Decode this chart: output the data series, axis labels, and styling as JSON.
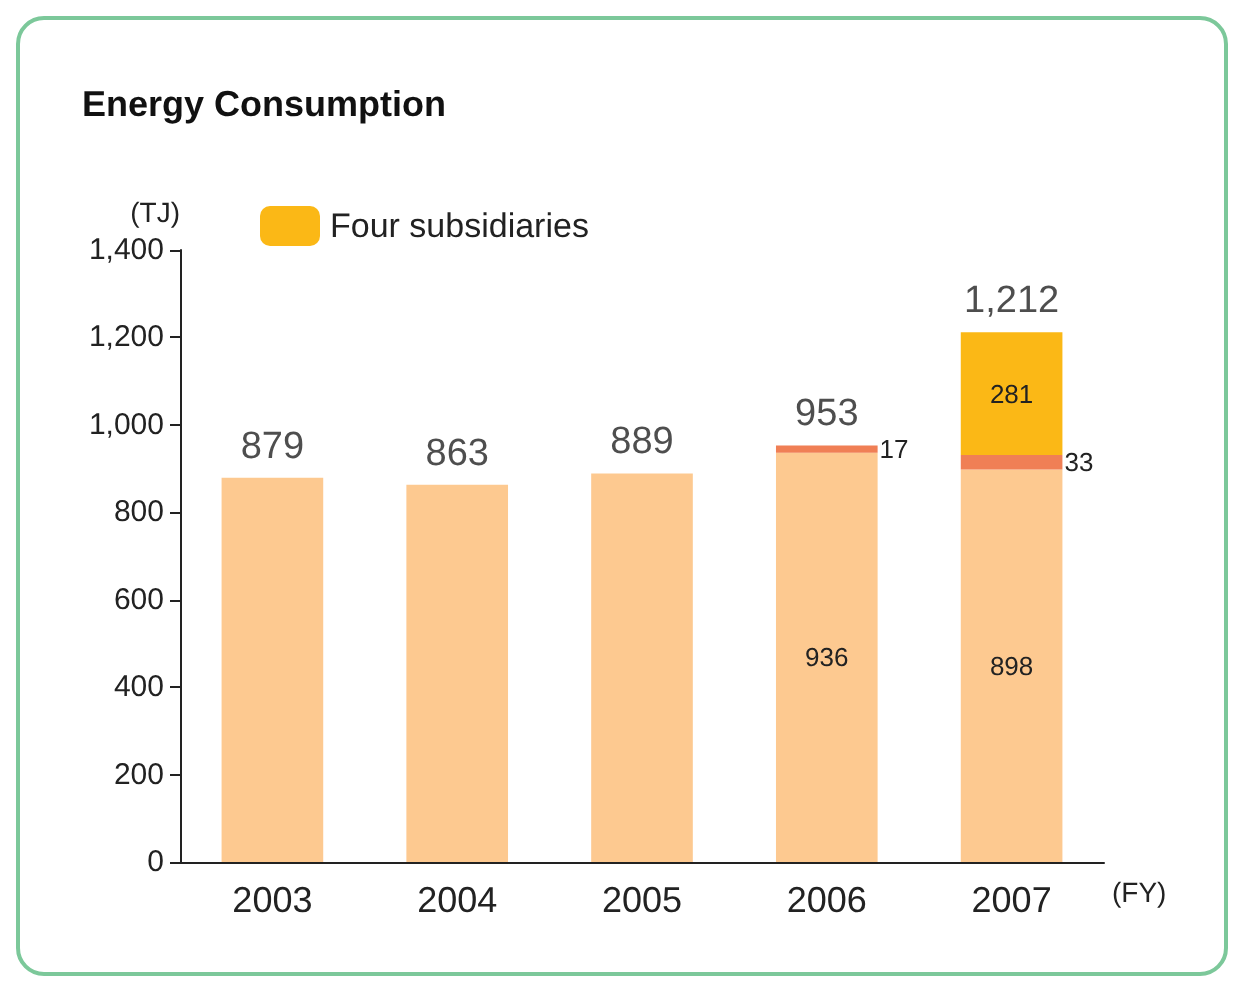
{
  "chart_data": {
    "type": "bar",
    "title": "Energy Consumption",
    "xlabel": "(FY)",
    "ylabel": "(TJ)",
    "stacked": true,
    "categories": [
      "2003",
      "2004",
      "2005",
      "2006",
      "2007"
    ],
    "series": [
      {
        "color": "#fdc990",
        "values": [
          879,
          863,
          889,
          936,
          898
        ],
        "value_labels": [
          null,
          null,
          null,
          "936",
          "898"
        ]
      },
      {
        "color": "#f07f55",
        "values": [
          null,
          null,
          null,
          17,
          33
        ],
        "value_labels": [
          null,
          null,
          null,
          "17",
          "33"
        ]
      },
      {
        "name": "Four subsidiaries",
        "color": "#fbb816",
        "values": [
          null,
          null,
          null,
          null,
          281
        ],
        "value_labels": [
          null,
          null,
          null,
          null,
          "281"
        ]
      }
    ],
    "totals": [
      "879",
      "863",
      "889",
      "953",
      "1,212"
    ],
    "ylim": [
      0,
      1400
    ],
    "yticks": [
      0,
      200,
      400,
      600,
      800,
      {
        "value": 1000,
        "label": "1,000"
      },
      {
        "value": 1200,
        "label": "1,200"
      },
      {
        "value": 1400,
        "label": "1,400"
      }
    ],
    "grid": false,
    "legend": "top left"
  }
}
